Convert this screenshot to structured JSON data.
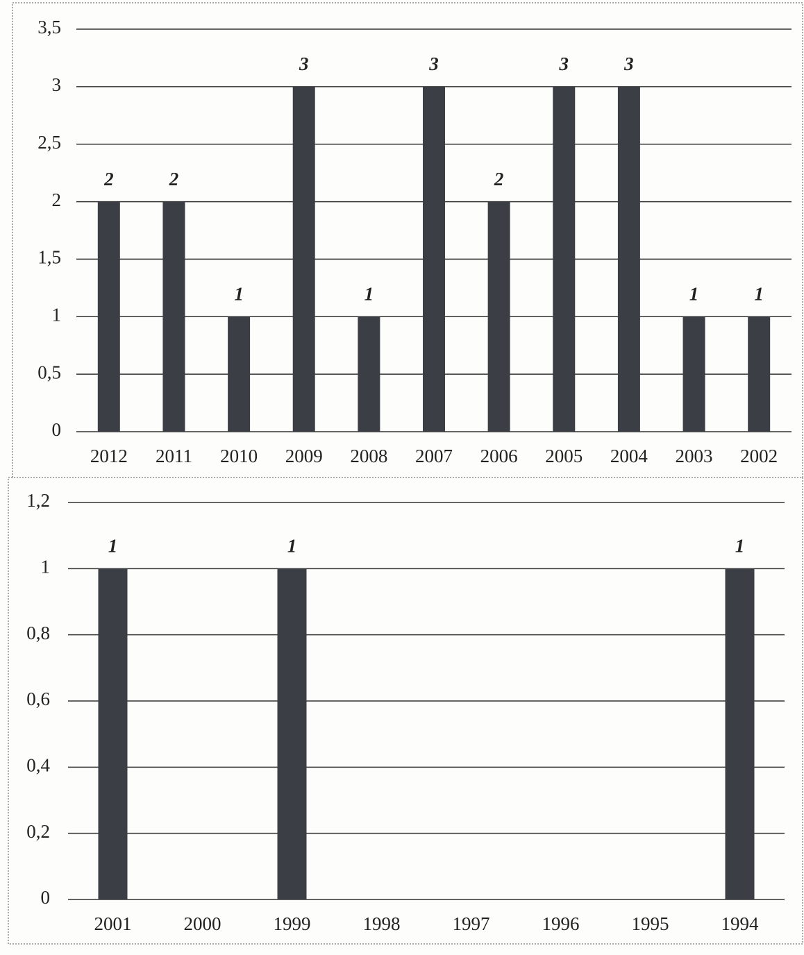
{
  "chart_data": [
    {
      "type": "bar",
      "categories": [
        "2012",
        "2011",
        "2010",
        "2009",
        "2008",
        "2007",
        "2006",
        "2005",
        "2004",
        "2003",
        "2002"
      ],
      "values": [
        2,
        2,
        1,
        3,
        1,
        3,
        2,
        3,
        3,
        1,
        1
      ],
      "color": "#3b3e44",
      "ylim": [
        0,
        3.5
      ],
      "yticks": [
        0,
        {
          "value": 0.5,
          "label": "0,5"
        },
        1,
        {
          "value": 1.5,
          "label": "1,5"
        },
        2,
        {
          "value": 2.5,
          "label": "2,5"
        },
        3,
        {
          "value": 3.5,
          "label": "3,5"
        }
      ],
      "grid": true
    },
    {
      "type": "bar",
      "categories": [
        "2001",
        "2000",
        "1999",
        "1998",
        "1997",
        "1996",
        "1995",
        "1994"
      ],
      "values": [
        1,
        0,
        1,
        0,
        0,
        0,
        0,
        1
      ],
      "color": "#3b3e44",
      "ylim": [
        0,
        1.2
      ],
      "yticks": [
        0,
        {
          "value": 0.2,
          "label": "0,2"
        },
        {
          "value": 0.4,
          "label": "0,4"
        },
        {
          "value": 0.6,
          "label": "0,6"
        },
        {
          "value": 0.8,
          "label": "0,8"
        },
        1,
        {
          "value": 1.2,
          "label": "1,2"
        }
      ],
      "grid": true
    }
  ]
}
